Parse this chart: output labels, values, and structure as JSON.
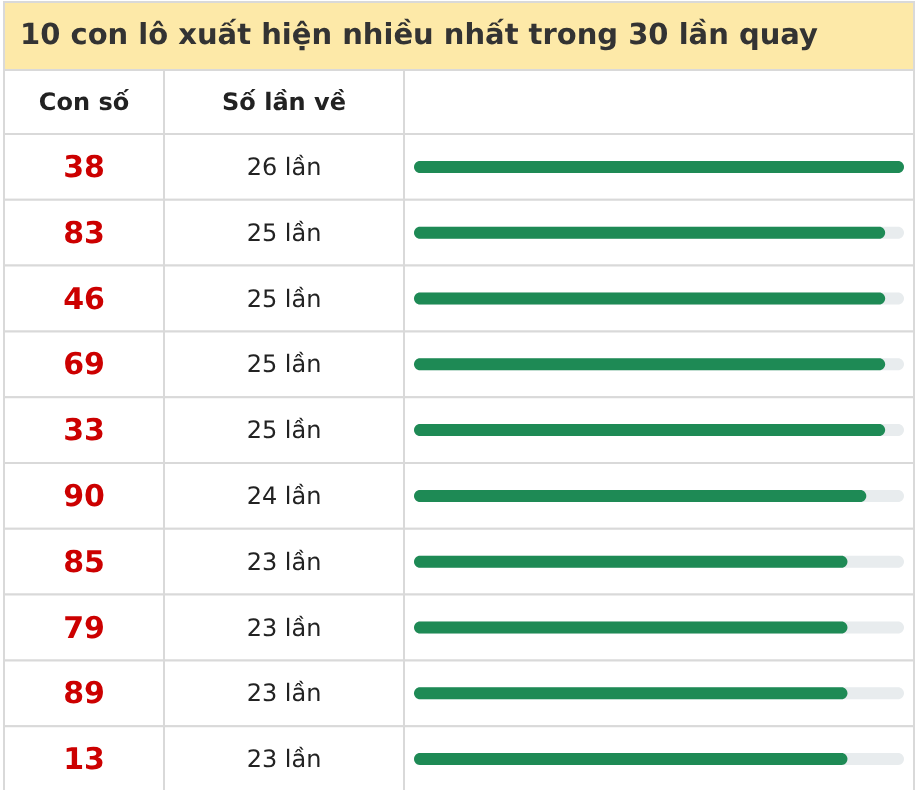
{
  "chart_data": {
    "type": "bar",
    "orientation": "horizontal",
    "title": "10 con lô xuất hiện nhiều nhất trong 30 lần quay",
    "ylabel": "Con số",
    "xlabel": "Số lần về",
    "categories": [
      "38",
      "83",
      "46",
      "69",
      "33",
      "90",
      "85",
      "79",
      "89",
      "13"
    ],
    "values": [
      26,
      25,
      25,
      25,
      25,
      24,
      23,
      23,
      23,
      23
    ],
    "value_labels": [
      "26 lần",
      "25 lần",
      "25 lần",
      "25 lần",
      "25 lần",
      "24 lần",
      "23 lần",
      "23 lần",
      "23 lần",
      "23 lần"
    ],
    "color": "#1e8a55"
  }
}
